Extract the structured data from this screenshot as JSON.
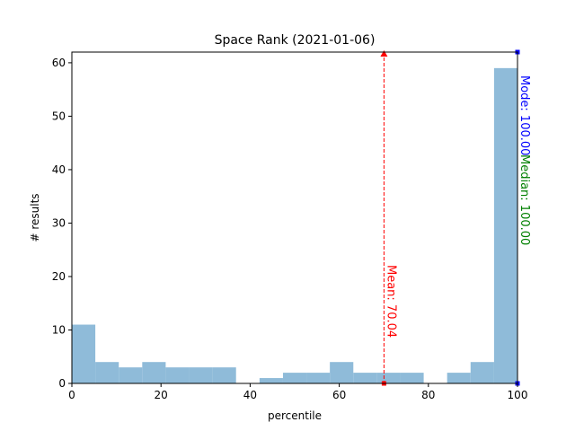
{
  "chart_data": {
    "type": "bar",
    "title": "Space Rank (2021-01-06)",
    "xlabel": "percentile",
    "ylabel": "# results",
    "xlim": [
      0,
      100
    ],
    "ylim": [
      0,
      62
    ],
    "xticks": [
      0,
      20,
      40,
      60,
      80,
      100
    ],
    "yticks": [
      0,
      10,
      20,
      30,
      40,
      50,
      60
    ],
    "bin_edges": [
      0,
      5.26,
      10.53,
      15.79,
      21.05,
      26.32,
      31.58,
      36.84,
      42.11,
      47.37,
      52.63,
      57.89,
      63.16,
      68.42,
      73.68,
      78.95,
      84.21,
      89.47,
      94.74,
      100
    ],
    "counts": [
      11,
      4,
      3,
      4,
      3,
      3,
      3,
      0,
      1,
      2,
      2,
      4,
      2,
      2,
      2,
      0,
      2,
      4,
      59
    ],
    "bar_color": "#8fbbd9",
    "grid": false,
    "annotations": [
      {
        "label": "Mean: 70.04",
        "x": 70.04,
        "color": "#ff0000"
      },
      {
        "label": "Median: 100.00",
        "x": 100,
        "color": "#008000"
      },
      {
        "label": "Mode: 100.00",
        "x": 100,
        "color": "#0000ff"
      }
    ]
  }
}
